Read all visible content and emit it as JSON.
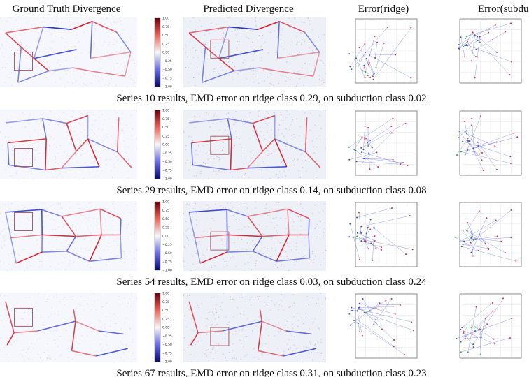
{
  "headers": [
    "Ground Truth Divergence",
    "Predicted Divergence",
    "Error(ridge)",
    "Error(subduction)"
  ],
  "colorbar_ticks": [
    "1.00",
    "0.75",
    "0.50",
    "0.25",
    "0.00",
    "−0.25",
    "−0.50",
    "−0.75",
    "−1.00"
  ],
  "rows": [
    {
      "caption": "Series 10 results, EMD error on ridge class 0.29, on subduction class 0.02"
    },
    {
      "caption": "Series 29 results, EMD error on ridge class 0.14, on subduction class 0.08"
    },
    {
      "caption": "Series 54 results, EMD error on ridge class 0.03, on subduction class 0.24"
    },
    {
      "caption": "Series 67 results, EMD error on ridge class 0.31, on subduction class 0.23"
    }
  ]
}
